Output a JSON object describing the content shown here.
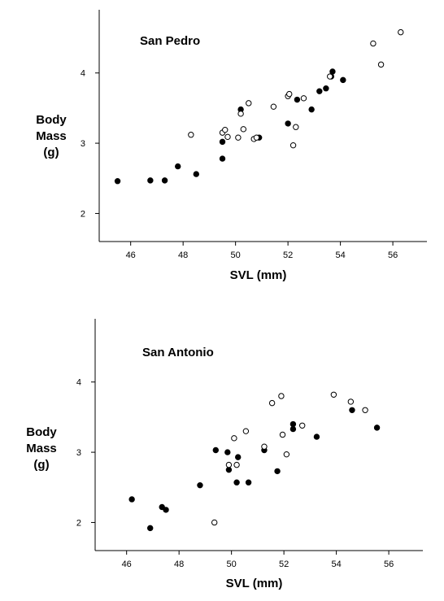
{
  "chart_data": [
    {
      "type": "scatter",
      "title": "San Pedro",
      "xlabel": "SVL (mm)",
      "ylabel": [
        "Body",
        "Mass",
        "(g)"
      ],
      "xlim": [
        44.8,
        57.3
      ],
      "ylim": [
        1.6,
        4.9
      ],
      "xticks": [
        46,
        48,
        50,
        52,
        54,
        56
      ],
      "yticks": [
        2,
        3,
        4
      ],
      "grid": false,
      "series": [
        {
          "marker": "filled-circle",
          "color": "#000000",
          "points": [
            [
              45.5,
              2.46
            ],
            [
              46.75,
              2.47
            ],
            [
              47.3,
              2.47
            ],
            [
              47.8,
              2.67
            ],
            [
              48.5,
              2.56
            ],
            [
              49.5,
              2.78
            ],
            [
              49.5,
              3.02
            ],
            [
              50.2,
              3.48
            ],
            [
              50.9,
              3.08
            ],
            [
              52.0,
              3.28
            ],
            [
              52.35,
              3.62
            ],
            [
              52.9,
              3.48
            ],
            [
              53.2,
              3.74
            ],
            [
              53.45,
              3.78
            ],
            [
              53.65,
              3.95
            ],
            [
              53.7,
              4.02
            ],
            [
              54.1,
              3.9
            ]
          ]
        },
        {
          "marker": "open-circle",
          "color": "#000000",
          "points": [
            [
              48.3,
              3.12
            ],
            [
              49.5,
              3.15
            ],
            [
              49.6,
              3.19
            ],
            [
              49.7,
              3.09
            ],
            [
              50.1,
              3.08
            ],
            [
              50.2,
              3.42
            ],
            [
              50.3,
              3.2
            ],
            [
              50.5,
              3.57
            ],
            [
              50.7,
              3.06
            ],
            [
              50.8,
              3.08
            ],
            [
              51.45,
              3.52
            ],
            [
              52.0,
              3.67
            ],
            [
              52.05,
              3.7
            ],
            [
              52.2,
              2.97
            ],
            [
              52.3,
              3.23
            ],
            [
              52.6,
              3.64
            ],
            [
              53.6,
              3.95
            ],
            [
              55.25,
              4.42
            ],
            [
              55.55,
              4.12
            ],
            [
              56.3,
              4.58
            ]
          ]
        }
      ]
    },
    {
      "type": "scatter",
      "title": "San Antonio",
      "xlabel": "SVL (mm)",
      "ylabel": [
        "Body",
        "Mass",
        "(g)"
      ],
      "xlim": [
        44.8,
        57.3
      ],
      "ylim": [
        1.6,
        4.9
      ],
      "xticks": [
        46,
        48,
        50,
        52,
        54,
        56
      ],
      "yticks": [
        2,
        3,
        4
      ],
      "grid": false,
      "series": [
        {
          "marker": "filled-circle",
          "color": "#000000",
          "points": [
            [
              46.2,
              2.33
            ],
            [
              46.9,
              1.92
            ],
            [
              47.35,
              2.22
            ],
            [
              47.5,
              2.18
            ],
            [
              48.8,
              2.53
            ],
            [
              49.4,
              3.03
            ],
            [
              49.85,
              3.0
            ],
            [
              49.9,
              2.75
            ],
            [
              50.2,
              2.57
            ],
            [
              50.25,
              2.93
            ],
            [
              50.65,
              2.57
            ],
            [
              51.25,
              3.03
            ],
            [
              51.75,
              2.73
            ],
            [
              52.35,
              3.33
            ],
            [
              52.35,
              3.4
            ],
            [
              53.25,
              3.22
            ],
            [
              54.6,
              3.6
            ],
            [
              55.55,
              3.35
            ]
          ]
        },
        {
          "marker": "open-circle",
          "color": "#000000",
          "points": [
            [
              49.35,
              2.0
            ],
            [
              49.9,
              2.82
            ],
            [
              50.1,
              3.2
            ],
            [
              50.2,
              2.82
            ],
            [
              50.55,
              3.3
            ],
            [
              51.25,
              3.08
            ],
            [
              51.55,
              3.7
            ],
            [
              51.9,
              3.8
            ],
            [
              51.95,
              3.25
            ],
            [
              52.1,
              2.97
            ],
            [
              52.7,
              3.38
            ],
            [
              53.9,
              3.82
            ],
            [
              54.55,
              3.72
            ],
            [
              55.1,
              3.6
            ]
          ]
        }
      ]
    }
  ]
}
